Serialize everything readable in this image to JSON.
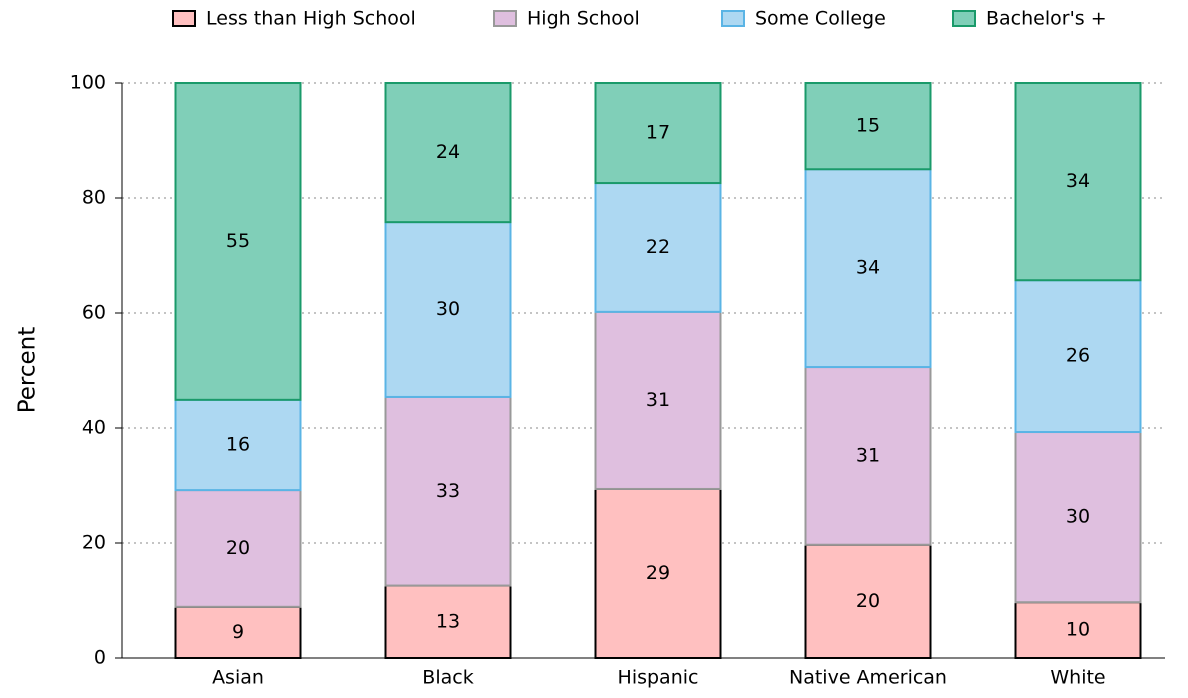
{
  "chart_data": {
    "type": "stacked_bar",
    "ylabel": "Percent",
    "categories": [
      "Asian",
      "Black",
      "Hispanic",
      "Native American",
      "White"
    ],
    "series": [
      {
        "name": "Less than High School",
        "color": "#ffc0c0",
        "edge": "#000000",
        "values": [
          8.9,
          12.6,
          29.4,
          19.7,
          9.7
        ],
        "value_labels": [
          "9",
          "13",
          "29",
          "20",
          "10"
        ]
      },
      {
        "name": "High School",
        "color": "#dfbfdf",
        "edge": "#999999",
        "values": [
          20.3,
          32.8,
          30.8,
          30.9,
          29.6
        ],
        "value_labels": [
          "20",
          "33",
          "31",
          "31",
          "30"
        ]
      },
      {
        "name": "Some College",
        "color": "#add8f2",
        "edge": "#5ab4e5",
        "values": [
          15.7,
          30.4,
          22.4,
          34.4,
          26.4
        ],
        "value_labels": [
          "16",
          "30",
          "22",
          "34",
          "26"
        ]
      },
      {
        "name": "Bachelor's +",
        "color": "#80cfb8",
        "edge": "#1a9a6a",
        "values": [
          55.1,
          24.2,
          17.4,
          15.0,
          34.3
        ],
        "value_labels": [
          "55",
          "24",
          "17",
          "15",
          "34"
        ]
      }
    ],
    "ylim": [
      0,
      100
    ],
    "yticks": [
      0,
      20,
      40,
      60,
      80,
      100
    ],
    "grid": true,
    "legend": "top"
  }
}
